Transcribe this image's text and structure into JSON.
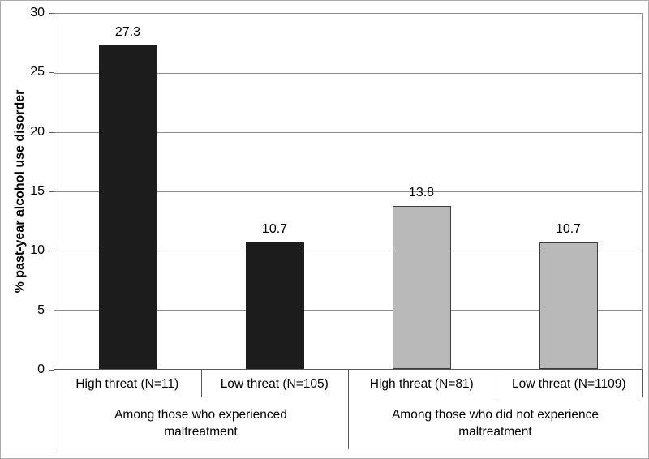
{
  "figure": {
    "background": "#ffffff",
    "border_color": "#ababab"
  },
  "chart_data": {
    "type": "bar",
    "title": "",
    "xlabel": "",
    "ylabel": "% past-year alcohol use disorder",
    "ylim": [
      0,
      30
    ],
    "yticks": [
      0,
      5,
      10,
      15,
      20,
      25,
      30
    ],
    "grid": true,
    "legend": false,
    "categories": [
      "High threat (N=11)",
      "Low threat (N=105)",
      "High threat (N=81)",
      "Low threat (N=1109)"
    ],
    "values": [
      27.3,
      10.7,
      13.8,
      10.7
    ],
    "value_labels": [
      "27.3",
      "10.7",
      "13.8",
      "10.7"
    ],
    "bar_fill_colors": [
      "#1c1c1c",
      "#1c1c1c",
      "#b9b9b9",
      "#b9b9b9"
    ],
    "bar_border_colors": [
      "#1c1c1c",
      "#1c1c1c",
      "#3d3d3d",
      "#3d3d3d"
    ],
    "gridline_color": "#8c8c8c",
    "axis_color": "#595959",
    "groups": [
      {
        "lines": [
          "Among those who experienced",
          "maltreatment"
        ],
        "span": [
          0,
          1
        ]
      },
      {
        "lines": [
          "Among those who did not experience",
          "maltreatment"
        ],
        "span": [
          2,
          3
        ]
      }
    ]
  }
}
